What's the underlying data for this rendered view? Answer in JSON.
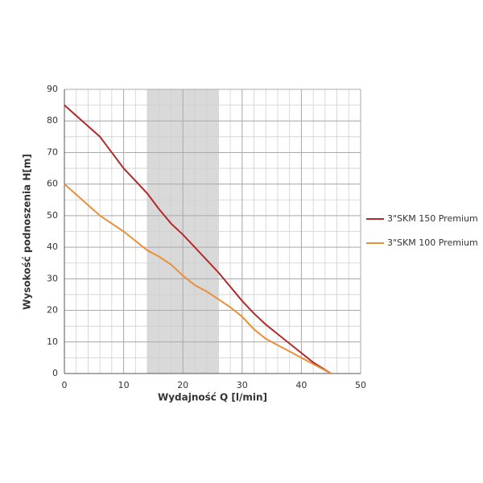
{
  "chart_data": {
    "type": "line",
    "x_label": "Wydajność Q [l/min]",
    "y_label": "Wysokość podnoszenia H[m]",
    "x": [
      0,
      3,
      6,
      8,
      10,
      12,
      14,
      16,
      18,
      20,
      22,
      24,
      26,
      28,
      30,
      32,
      34,
      36,
      38,
      40,
      42,
      45
    ],
    "series": [
      {
        "name": "3\"SKM 150 Premium",
        "color": "#b02a2a",
        "values": [
          85,
          80,
          75,
          70,
          65,
          61,
          57,
          52,
          47.5,
          44,
          40,
          36,
          32,
          27.5,
          23,
          19,
          15.5,
          12.5,
          9.5,
          6.5,
          3.5,
          0
        ]
      },
      {
        "name": "3\"SKM 100 Premium",
        "color": "#e8903a",
        "values": [
          60,
          55,
          50,
          47.5,
          45,
          42,
          39,
          37,
          34.5,
          31,
          28,
          26,
          23.5,
          21,
          18,
          14,
          11,
          9,
          7,
          5,
          3,
          0
        ]
      }
    ],
    "xlim": [
      0,
      50
    ],
    "xticks": [
      0,
      10,
      20,
      30,
      40,
      50
    ],
    "ylim": [
      0,
      90
    ],
    "yticks": [
      0,
      10,
      20,
      30,
      40,
      50,
      60,
      70,
      80,
      90
    ],
    "grid": true,
    "minor_grid": {
      "x": 2,
      "y": 5
    },
    "shaded_x_range": [
      14,
      26
    ],
    "shaded_color": "#d9d9d9",
    "legend": "right"
  }
}
